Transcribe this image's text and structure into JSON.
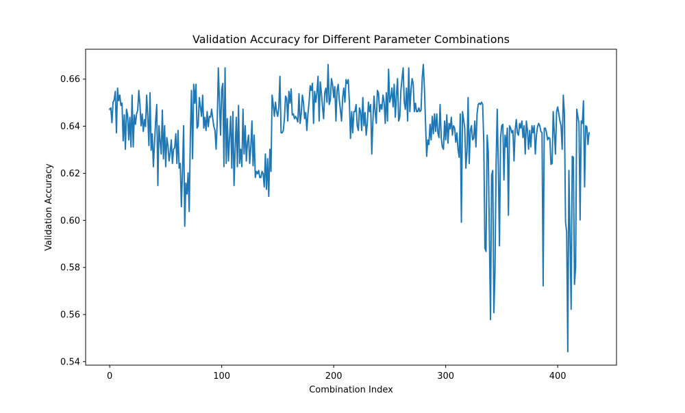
{
  "chart_data": {
    "type": "line",
    "title": "Validation Accuracy for Different Parameter Combinations",
    "xlabel": "Combination Index",
    "ylabel": "Validation Accuracy",
    "xlim": [
      -21.5,
      452.5
    ],
    "ylim": [
      0.5385,
      0.6727
    ],
    "xticks": [
      0,
      100,
      200,
      300,
      400
    ],
    "xtick_labels": [
      "0",
      "100",
      "200",
      "300",
      "400"
    ],
    "yticks": [
      0.54,
      0.56,
      0.58,
      0.6,
      0.62,
      0.64,
      0.66
    ],
    "ytick_labels": [
      "0.54",
      "0.56",
      "0.58",
      "0.60",
      "0.62",
      "0.64",
      "0.66"
    ],
    "grid": false,
    "legend": "none",
    "series": [
      {
        "color": "#1f77b4",
        "x_start": 0,
        "x_step": 1,
        "values": [
          0.6472,
          0.6478,
          0.6415,
          0.6502,
          0.6512,
          0.6548,
          0.6372,
          0.6562,
          0.6508,
          0.6532,
          0.6488,
          0.6498,
          0.6338,
          0.6448,
          0.6302,
          0.6472,
          0.6448,
          0.6342,
          0.6438,
          0.6312,
          0.6532,
          0.6312,
          0.6448,
          0.6408,
          0.6452,
          0.6468,
          0.6552,
          0.6492,
          0.6402,
          0.6452,
          0.6378,
          0.6428,
          0.6398,
          0.6532,
          0.6442,
          0.6318,
          0.6542,
          0.6298,
          0.6368,
          0.6228,
          0.6328,
          0.6422,
          0.6492,
          0.6148,
          0.6402,
          0.6338,
          0.6282,
          0.6468,
          0.6262,
          0.6402,
          0.6228,
          0.6352,
          0.6318,
          0.6252,
          0.6288,
          0.6342,
          0.6242,
          0.6302,
          0.6308,
          0.6368,
          0.6242,
          0.6382,
          0.6222,
          0.6242,
          0.6058,
          0.6212,
          0.6402,
          0.5975,
          0.6158,
          0.6112,
          0.6202,
          0.6038,
          0.6358,
          0.6552,
          0.6262,
          0.6578,
          0.6498,
          0.6578,
          0.6392,
          0.6402,
          0.6522,
          0.6482,
          0.6442,
          0.6532,
          0.6392,
          0.6438,
          0.6382,
          0.6462,
          0.6398,
          0.6442,
          0.6438,
          0.6472,
          0.6432,
          0.6398,
          0.6382,
          0.6302,
          0.6418,
          0.6648,
          0.6502,
          0.6362,
          0.6558,
          0.6582,
          0.6228,
          0.6648,
          0.6242,
          0.6432,
          0.6252,
          0.6352,
          0.6442,
          0.6222,
          0.6462,
          0.6148,
          0.6302,
          0.6438,
          0.6228,
          0.6488,
          0.6242,
          0.6302,
          0.6228,
          0.6472,
          0.6282,
          0.6402,
          0.6252,
          0.6332,
          0.6362,
          0.6242,
          0.6312,
          0.6422,
          0.6232,
          0.6362,
          0.6182,
          0.6208,
          0.6198,
          0.6212,
          0.6182,
          0.6182,
          0.6208,
          0.6198,
          0.6142,
          0.6282,
          0.6132,
          0.6262,
          0.6102,
          0.6302,
          0.6208,
          0.6532,
          0.6492,
          0.6442,
          0.6502,
          0.6462,
          0.6442,
          0.6482,
          0.6612,
          0.6372,
          0.6372,
          0.6382,
          0.6432,
          0.6528,
          0.6518,
          0.6422,
          0.6548,
          0.6498,
          0.6558,
          0.6448,
          0.6452,
          0.6432,
          0.6442,
          0.6432,
          0.6418,
          0.6538,
          0.6412,
          0.6452,
          0.6532,
          0.6502,
          0.6432,
          0.6458,
          0.6382,
          0.6452,
          0.6502,
          0.6572,
          0.6552,
          0.6582,
          0.6412,
          0.6548,
          0.6502,
          0.6542,
          0.6612,
          0.6422,
          0.6588,
          0.6542,
          0.6482,
          0.6432,
          0.6542,
          0.6562,
          0.6502,
          0.6662,
          0.6492,
          0.6512,
          0.6602,
          0.6578,
          0.6522,
          0.6568,
          0.6422,
          0.6552,
          0.6578,
          0.6512,
          0.6468,
          0.6422,
          0.6522,
          0.6562,
          0.6502,
          0.6598,
          0.6582,
          0.6598,
          0.6502,
          0.6348,
          0.6462,
          0.6372,
          0.6462,
          0.6462,
          0.6492,
          0.6402,
          0.6382,
          0.6478,
          0.6462,
          0.6382,
          0.6522,
          0.6402,
          0.6458,
          0.6362,
          0.6412,
          0.6502,
          0.6462,
          0.6492,
          0.6282,
          0.6422,
          0.6528,
          0.6462,
          0.6412,
          0.6552,
          0.6542,
          0.6462,
          0.6492,
          0.6472,
          0.6532,
          0.6502,
          0.6412,
          0.6542,
          0.6422,
          0.6642,
          0.6502,
          0.6522,
          0.6562,
          0.6482,
          0.6578,
          0.6438,
          0.6532,
          0.6602,
          0.6422,
          0.6438,
          0.6552,
          0.6602,
          0.6648,
          0.6502,
          0.6472,
          0.6562,
          0.6422,
          0.6648,
          0.6462,
          0.6552,
          0.6602,
          0.6582,
          0.6462,
          0.6498,
          0.6462,
          0.6462,
          0.6478,
          0.6462,
          0.6468,
          0.6602,
          0.6662,
          0.6562,
          0.6412,
          0.6272,
          0.6342,
          0.6322,
          0.6408,
          0.6342,
          0.6442,
          0.6368,
          0.6452,
          0.6378,
          0.6452,
          0.6372,
          0.6352,
          0.6492,
          0.6352,
          0.6312,
          0.6302,
          0.6422,
          0.6342,
          0.6448,
          0.6328,
          0.6412,
          0.6388,
          0.6438,
          0.6362,
          0.6402,
          0.6392,
          0.6332,
          0.6372,
          0.6302,
          0.6268,
          0.6452,
          0.5992,
          0.6462,
          0.6428,
          0.6392,
          0.6222,
          0.6292,
          0.6522,
          0.6242,
          0.6382,
          0.6402,
          0.6342,
          0.6348,
          0.6422,
          0.6312,
          0.6452,
          0.6492,
          0.6498,
          0.6492,
          0.6502,
          0.6492,
          0.6332,
          0.5882,
          0.5868,
          0.6362,
          0.6292,
          0.5932,
          0.5578,
          0.6192,
          0.6212,
          0.5608,
          0.5782,
          0.6242,
          0.6472,
          0.6222,
          0.5892,
          0.6352,
          0.6402,
          0.6408,
          0.6172,
          0.6362,
          0.6312,
          0.6392,
          0.6022,
          0.6402,
          0.6392,
          0.6372,
          0.6382,
          0.6252,
          0.6382,
          0.6428,
          0.6372,
          0.6362,
          0.6412,
          0.6392,
          0.6422,
          0.6352,
          0.6402,
          0.6282,
          0.6422,
          0.6382,
          0.6302,
          0.6382,
          0.6312,
          0.6402,
          0.6372,
          0.6402,
          0.6282,
          0.6362,
          0.6398,
          0.6412,
          0.6402,
          0.6378,
          0.6372,
          0.5722,
          0.6392,
          0.6392,
          0.6372,
          0.6342,
          0.6352,
          0.6348,
          0.6238,
          0.6242,
          0.6462,
          0.6372,
          0.6282,
          0.6462,
          0.6482,
          0.6452,
          0.6422,
          0.6402,
          0.6302,
          0.6532,
          0.6452,
          0.5992,
          0.5952,
          0.5442,
          0.6212,
          0.5942,
          0.5622,
          0.6272,
          0.6268,
          0.5728,
          0.5802,
          0.6472,
          0.6442,
          0.6412,
          0.6002,
          0.6422,
          0.6412,
          0.6508,
          0.6142,
          0.6402,
          0.6398,
          0.6322,
          0.6372
        ]
      }
    ]
  }
}
